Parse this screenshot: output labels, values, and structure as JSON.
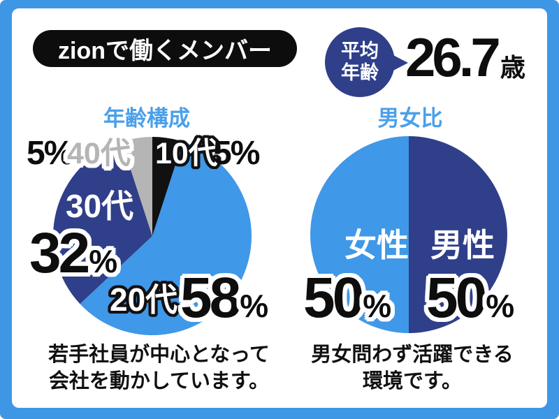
{
  "ui": {
    "percent": "%"
  },
  "header": {
    "title": "zionで働くメンバー",
    "avg_age_badge": {
      "line1": "平均",
      "line2": "年齢"
    },
    "avg_age_value": "26.7",
    "avg_age_unit": "歳"
  },
  "colors": {
    "frame_blue": "#3e97e4",
    "light_blue": "#3f98e8",
    "navy": "#303f8a",
    "gray": "#b5b5b5",
    "black": "#111111",
    "title_blue": "#4aa0ea"
  },
  "chart_data": [
    {
      "type": "pie",
      "title": "年齢構成",
      "start_angle_deg": 0,
      "direction": "clockwise",
      "slices": [
        {
          "label": "10代",
          "value": 5,
          "color": "#111111"
        },
        {
          "label": "20代",
          "value": 58,
          "color": "#3f98e8"
        },
        {
          "label": "30代",
          "value": 32,
          "color": "#303f8a"
        },
        {
          "label": "40代",
          "value": 5,
          "color": "#b5b5b5"
        }
      ],
      "caption_lines": [
        "若手社員が中心となって",
        "会社を動かしています。"
      ]
    },
    {
      "type": "pie",
      "title": "男女比",
      "start_angle_deg": 0,
      "direction": "clockwise",
      "slices": [
        {
          "label": "男性",
          "value": 50,
          "color": "#303f8a"
        },
        {
          "label": "女性",
          "value": 50,
          "color": "#3f98e8"
        }
      ],
      "caption_lines": [
        "男女問わず活躍できる",
        "環境です。"
      ]
    }
  ]
}
